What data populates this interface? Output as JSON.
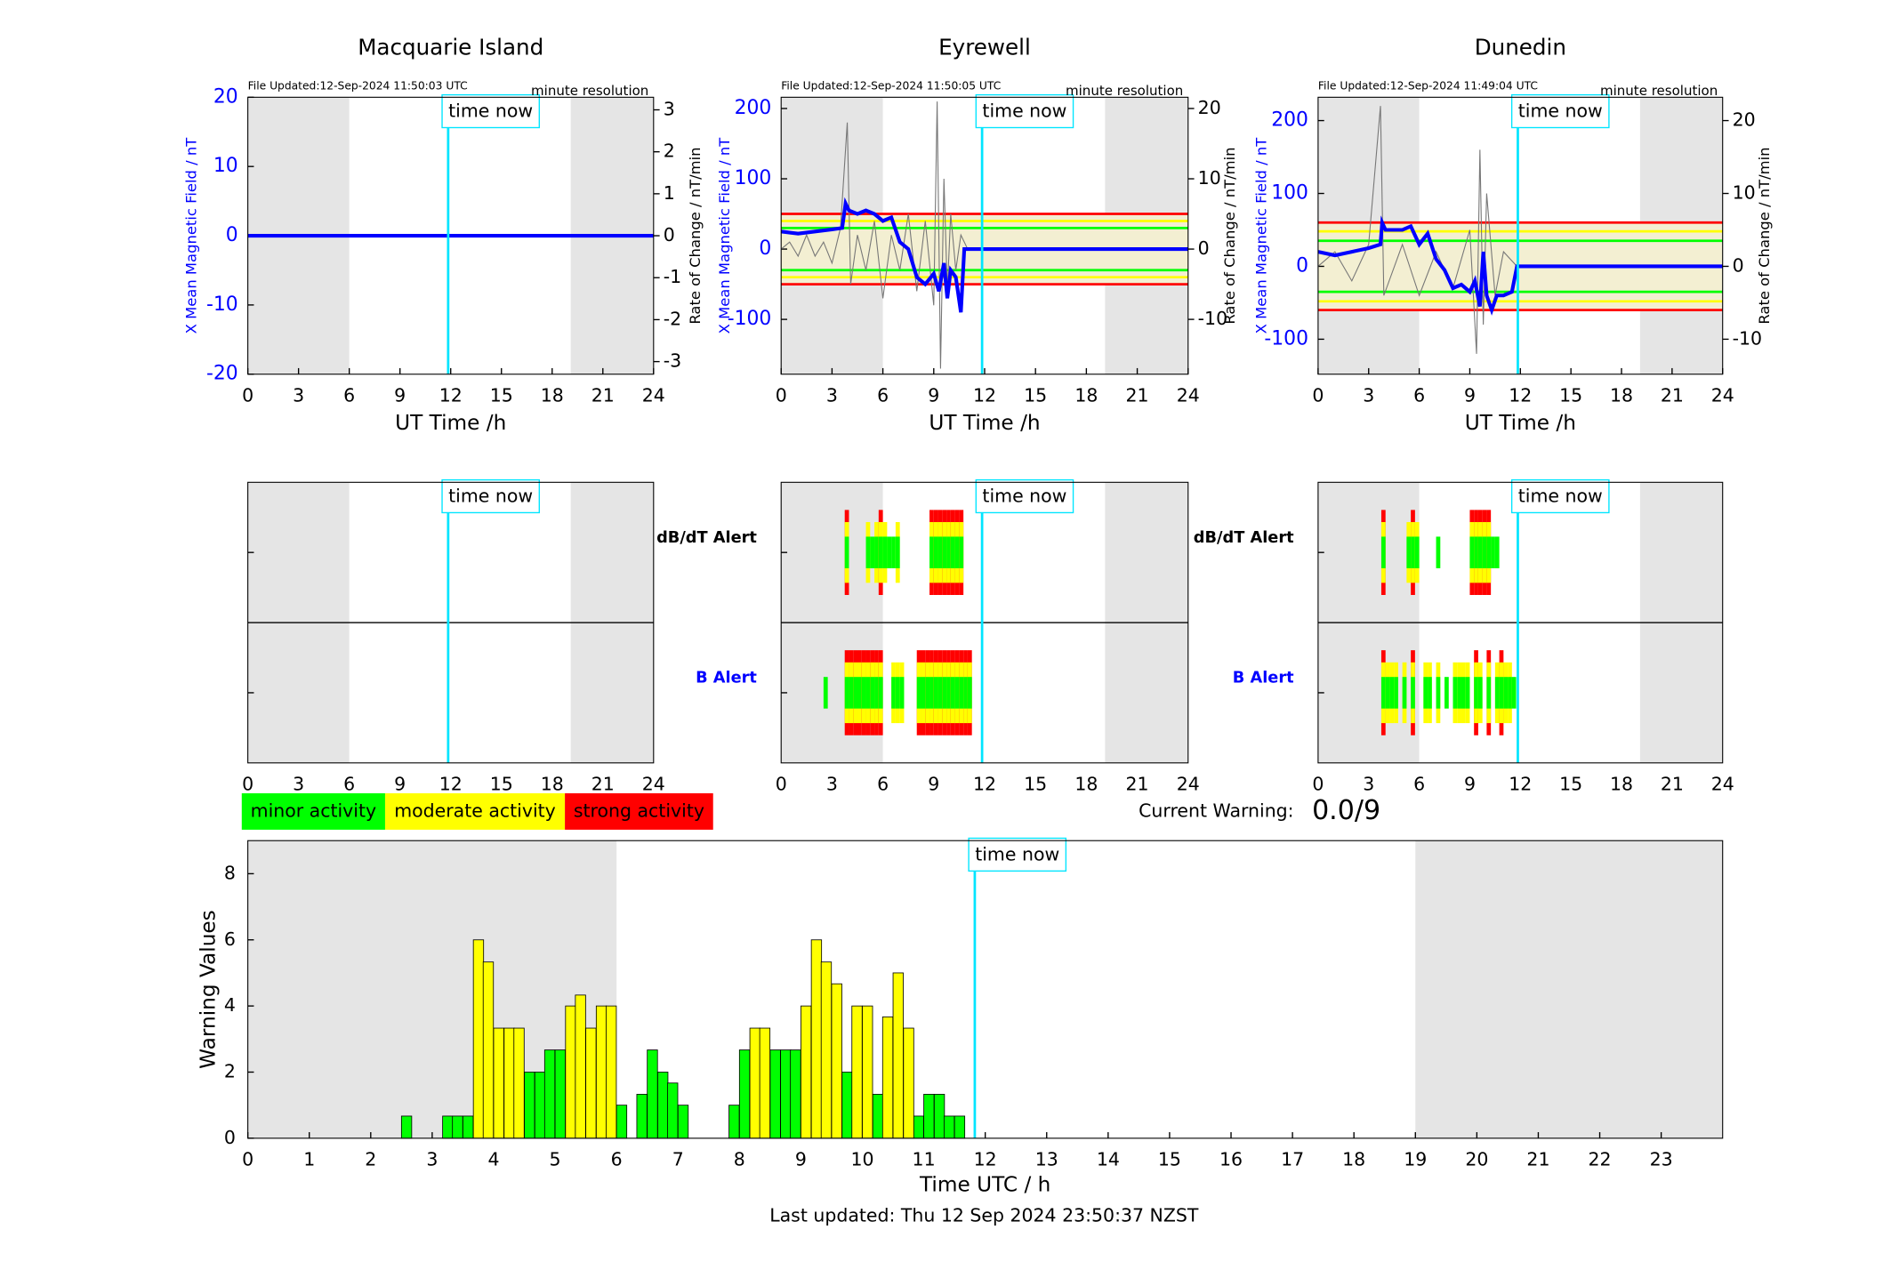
{
  "chart_data": [
    {
      "type": "dual_line",
      "title": "Macquarie Island",
      "file_updated": "File Updated:12-Sep-2024 11:50:03 UTC",
      "resolution": "minute resolution",
      "time_now_label": "time now",
      "time_now": 11.85,
      "ylabel": "X Mean Magnetic Field / nT",
      "y2label": "Rate of Change / nT/min",
      "xlabel": "UT Time /h",
      "xlim": [
        0,
        24
      ],
      "xticks": [
        0,
        3,
        6,
        9,
        12,
        15,
        18,
        21,
        24
      ],
      "ylim": [
        -20,
        20
      ],
      "yticks": [
        -20,
        -10,
        0,
        10,
        20
      ],
      "y2lim": [
        -3.3,
        3.3
      ],
      "y2ticks": [
        -3,
        -2,
        -1,
        0,
        1,
        2,
        3
      ],
      "shaded": [
        [
          0,
          6
        ],
        [
          19.1,
          24
        ]
      ],
      "thresholds": [],
      "series": [
        {
          "color": "#000000",
          "axis": "y2",
          "x": [
            0,
            24
          ],
          "values": [
            0,
            0
          ]
        },
        {
          "color": "#0000ff",
          "x": [
            0,
            24
          ],
          "values": [
            0,
            0
          ]
        }
      ]
    },
    {
      "type": "dual_line",
      "title": "Eyrewell",
      "file_updated": "File Updated:12-Sep-2024 11:50:05 UTC",
      "resolution": "minute resolution",
      "time_now_label": "time now",
      "time_now": 11.85,
      "ylabel": "X Mean Magnetic Field / nT",
      "y2label": "Rate of Change / nT/min",
      "xlabel": "UT Time /h",
      "xlim": [
        0,
        24
      ],
      "xticks": [
        0,
        3,
        6,
        9,
        12,
        15,
        18,
        21,
        24
      ],
      "ylim": [
        -178,
        216
      ],
      "yticks": [
        -100,
        0,
        100,
        200
      ],
      "y2lim": [
        -17.8,
        21.6
      ],
      "y2ticks": [
        -10,
        0,
        10,
        20
      ],
      "shaded": [
        [
          0,
          6
        ],
        [
          19.1,
          24
        ]
      ],
      "thresholds": [
        {
          "value": 50,
          "color": "#ff0000"
        },
        {
          "value": -50,
          "color": "#ff0000"
        },
        {
          "value": 40,
          "color": "#ffff00"
        },
        {
          "value": -40,
          "color": "#ffff00"
        },
        {
          "value": 30,
          "color": "#00ff00"
        },
        {
          "value": -30,
          "color": "#00ff00"
        }
      ],
      "series": [
        {
          "color": "#777777",
          "axis": "y2",
          "x": [
            0,
            0.5,
            1,
            1.5,
            2,
            2.5,
            3,
            3.5,
            3.9,
            4.1,
            4.5,
            5,
            5.5,
            6,
            6.5,
            7,
            7.5,
            8,
            8.5,
            9,
            9.2,
            9.4,
            9.6,
            9.8,
            10,
            10.3,
            10.6,
            11
          ],
          "values": [
            0,
            1,
            -1,
            2,
            -1,
            1,
            -2,
            3,
            18,
            -5,
            2,
            -3,
            4,
            -7,
            2,
            -3,
            5,
            -6,
            4,
            -8,
            21,
            -17,
            10,
            -6,
            5,
            -3,
            2,
            0
          ]
        },
        {
          "color": "#0000ff",
          "x": [
            0,
            1,
            2,
            3,
            3.6,
            3.8,
            4,
            4.5,
            5,
            5.5,
            6,
            6.5,
            7,
            7.5,
            8,
            8.5,
            9,
            9.3,
            9.6,
            9.8,
            10,
            10.3,
            10.6,
            10.8,
            11,
            24
          ],
          "values": [
            25,
            22,
            25,
            28,
            30,
            65,
            55,
            50,
            55,
            50,
            40,
            45,
            10,
            0,
            -40,
            -50,
            -35,
            -60,
            -20,
            -70,
            -30,
            -40,
            -90,
            0,
            0,
            0
          ]
        }
      ]
    },
    {
      "type": "dual_line",
      "title": "Dunedin",
      "file_updated": "File Updated:12-Sep-2024 11:49:04 UTC",
      "resolution": "minute resolution",
      "time_now_label": "time now",
      "time_now": 11.85,
      "ylabel": "X Mean Magnetic Field / nT",
      "y2label": "Rate of Change / nT/min",
      "xlabel": "UT Time /h",
      "xlim": [
        0,
        24
      ],
      "xticks": [
        0,
        3,
        6,
        9,
        12,
        15,
        18,
        21,
        24
      ],
      "ylim": [
        -148,
        232
      ],
      "yticks": [
        -100,
        0,
        100,
        200
      ],
      "y2lim": [
        -14.8,
        23.2
      ],
      "y2ticks": [
        -10,
        0,
        10,
        20
      ],
      "shaded": [
        [
          0,
          6
        ],
        [
          19.1,
          24
        ]
      ],
      "thresholds": [
        {
          "value": 60,
          "color": "#ff0000"
        },
        {
          "value": -60,
          "color": "#ff0000"
        },
        {
          "value": 48,
          "color": "#ffff00"
        },
        {
          "value": -48,
          "color": "#ffff00"
        },
        {
          "value": 35,
          "color": "#00ff00"
        },
        {
          "value": -35,
          "color": "#00ff00"
        }
      ],
      "series": [
        {
          "color": "#777777",
          "axis": "y2",
          "x": [
            0,
            1,
            2,
            3,
            3.7,
            3.9,
            5,
            6,
            7,
            8,
            9,
            9.4,
            9.6,
            9.8,
            10,
            10.5,
            11,
            11.8
          ],
          "values": [
            0,
            2,
            -2,
            3,
            22,
            -4,
            3,
            -4,
            2,
            -3,
            5,
            -12,
            16,
            -8,
            10,
            -4,
            2,
            0
          ]
        },
        {
          "color": "#0000ff",
          "x": [
            0,
            1,
            2,
            3,
            3.7,
            3.8,
            4,
            5,
            5.5,
            6,
            6.5,
            7,
            7.5,
            8,
            8.5,
            9,
            9.3,
            9.6,
            9.8,
            10,
            10.3,
            10.6,
            11,
            11.5,
            11.8,
            24
          ],
          "values": [
            20,
            15,
            20,
            25,
            30,
            60,
            50,
            50,
            55,
            30,
            45,
            10,
            -5,
            -30,
            -25,
            -35,
            -20,
            -55,
            20,
            -40,
            -60,
            -40,
            -40,
            -35,
            0,
            0
          ]
        }
      ]
    },
    {
      "type": "alert",
      "time_now_label": "time now",
      "time_now": 11.85,
      "xlim": [
        0,
        24
      ],
      "xticks": [
        0,
        3,
        6,
        9,
        12,
        15,
        18,
        21,
        24
      ],
      "shaded": [
        [
          0,
          6
        ],
        [
          19.1,
          24
        ]
      ],
      "panels": [
        {
          "x": [],
          "values": []
        },
        {
          "x": [],
          "values": []
        }
      ]
    },
    {
      "type": "alert",
      "time_now_label": "time now",
      "time_now": 11.85,
      "xlim": [
        0,
        24
      ],
      "xticks": [
        0,
        3,
        6,
        9,
        12,
        15,
        18,
        21,
        24
      ],
      "shaded": [
        [
          0,
          6
        ],
        [
          19.1,
          24
        ]
      ],
      "panels": [
        {
          "label": "dB/dT Alert",
          "label_color": "#000000",
          "x": [
            3.75,
            5.0,
            5.25,
            5.5,
            5.75,
            6.0,
            6.25,
            6.5,
            6.75,
            8.75,
            9.0,
            9.25,
            9.5,
            9.75,
            10.0,
            10.25,
            10.5
          ],
          "values": [
            3,
            2,
            1,
            2,
            3,
            2,
            1,
            1,
            2,
            3,
            3,
            3,
            3,
            3,
            3,
            3,
            3
          ]
        },
        {
          "label": "B Alert",
          "label_color": "#0000ff",
          "x": [
            2.5,
            3.75,
            4.0,
            4.25,
            4.5,
            4.75,
            5.0,
            5.25,
            5.5,
            5.75,
            6.5,
            6.75,
            7.0,
            8.0,
            8.25,
            8.5,
            8.75,
            9.0,
            9.25,
            9.5,
            9.75,
            10.0,
            10.25,
            10.5,
            10.75,
            11.0
          ],
          "values": [
            1,
            3,
            3,
            3,
            3,
            3,
            3,
            3,
            3,
            3,
            2,
            2,
            2,
            3,
            3,
            3,
            3,
            3,
            3,
            3,
            3,
            3,
            3,
            3,
            3,
            3
          ]
        }
      ]
    },
    {
      "type": "alert",
      "time_now_label": "time now",
      "time_now": 11.85,
      "xlim": [
        0,
        24
      ],
      "xticks": [
        0,
        3,
        6,
        9,
        12,
        15,
        18,
        21,
        24
      ],
      "shaded": [
        [
          0,
          6
        ],
        [
          19.1,
          24
        ]
      ],
      "panels": [
        {
          "label": "dB/dT Alert",
          "label_color": "#000000",
          "x": [
            3.75,
            5.25,
            5.5,
            5.75,
            7.0,
            9.0,
            9.25,
            9.5,
            9.75,
            10.0,
            10.25,
            10.5
          ],
          "values": [
            3,
            2,
            3,
            2,
            1,
            3,
            3,
            3,
            3,
            3,
            1,
            1
          ]
        },
        {
          "label": "B Alert",
          "label_color": "#0000ff",
          "x": [
            3.75,
            4.0,
            4.25,
            4.5,
            5.0,
            5.5,
            6.25,
            6.5,
            7.0,
            7.5,
            8.0,
            8.25,
            8.5,
            8.75,
            9.25,
            9.5,
            10.0,
            10.5,
            10.75,
            11.0,
            11.25,
            11.5
          ],
          "values": [
            3,
            2,
            2,
            2,
            2,
            3,
            2,
            2,
            2,
            1,
            2,
            2,
            2,
            2,
            3,
            2,
            3,
            2,
            3,
            2,
            2,
            1
          ]
        }
      ]
    },
    {
      "type": "bar",
      "xlabel": "Time UTC / h",
      "ylabel": "Warning Values",
      "time_now_label": "time now",
      "time_now": 11.83,
      "xlim": [
        0,
        24
      ],
      "xticks": [
        0,
        1,
        2,
        3,
        4,
        5,
        6,
        7,
        8,
        9,
        10,
        11,
        12,
        13,
        14,
        15,
        16,
        17,
        18,
        19,
        20,
        21,
        22,
        23
      ],
      "ylim": [
        0,
        9
      ],
      "yticks": [
        0,
        2,
        4,
        6,
        8
      ],
      "shaded": [
        [
          0,
          6
        ],
        [
          19,
          24
        ]
      ],
      "series": [
        {
          "name": "minor activity",
          "color": "#00ff00",
          "x": [
            2.5,
            3.17,
            3.33,
            3.5,
            4.5,
            4.67,
            4.83,
            5.0,
            6.0,
            6.33,
            6.5,
            6.67,
            6.83,
            7.0,
            7.83,
            8.0,
            8.5,
            8.67,
            8.83,
            9.67,
            10.17,
            10.83,
            11.0,
            11.17,
            11.33,
            11.5
          ],
          "values": [
            0.67,
            0.67,
            0.67,
            0.67,
            2,
            2,
            2.67,
            2.67,
            1,
            1.33,
            2.67,
            2,
            1.67,
            1,
            1,
            2.67,
            2.67,
            2.67,
            2.67,
            2,
            1.33,
            0.67,
            1.33,
            1.33,
            0.67,
            0.67
          ]
        },
        {
          "name": "moderate activity",
          "color": "#ffff00",
          "x": [
            3.67,
            3.83,
            4.0,
            4.17,
            4.33,
            5.17,
            5.33,
            5.5,
            5.67,
            5.83,
            8.17,
            8.33,
            9.0,
            9.17,
            9.33,
            9.5,
            9.83,
            10.0,
            10.33,
            10.5,
            10.67
          ],
          "values": [
            6,
            5.33,
            3.33,
            3.33,
            3.33,
            4,
            4.33,
            3.33,
            4,
            4,
            3.33,
            3.33,
            4,
            6,
            5.33,
            4.67,
            4,
            4,
            3.67,
            5,
            3.33
          ]
        },
        {
          "name": "strong activity",
          "color": "#ff0000",
          "x": [],
          "values": []
        }
      ],
      "current_warning_label": "Current Warning:",
      "current_warning": "0.0/9",
      "footer": "Last updated: Thu 12 Sep 2024 23:50:37 NZST"
    }
  ]
}
